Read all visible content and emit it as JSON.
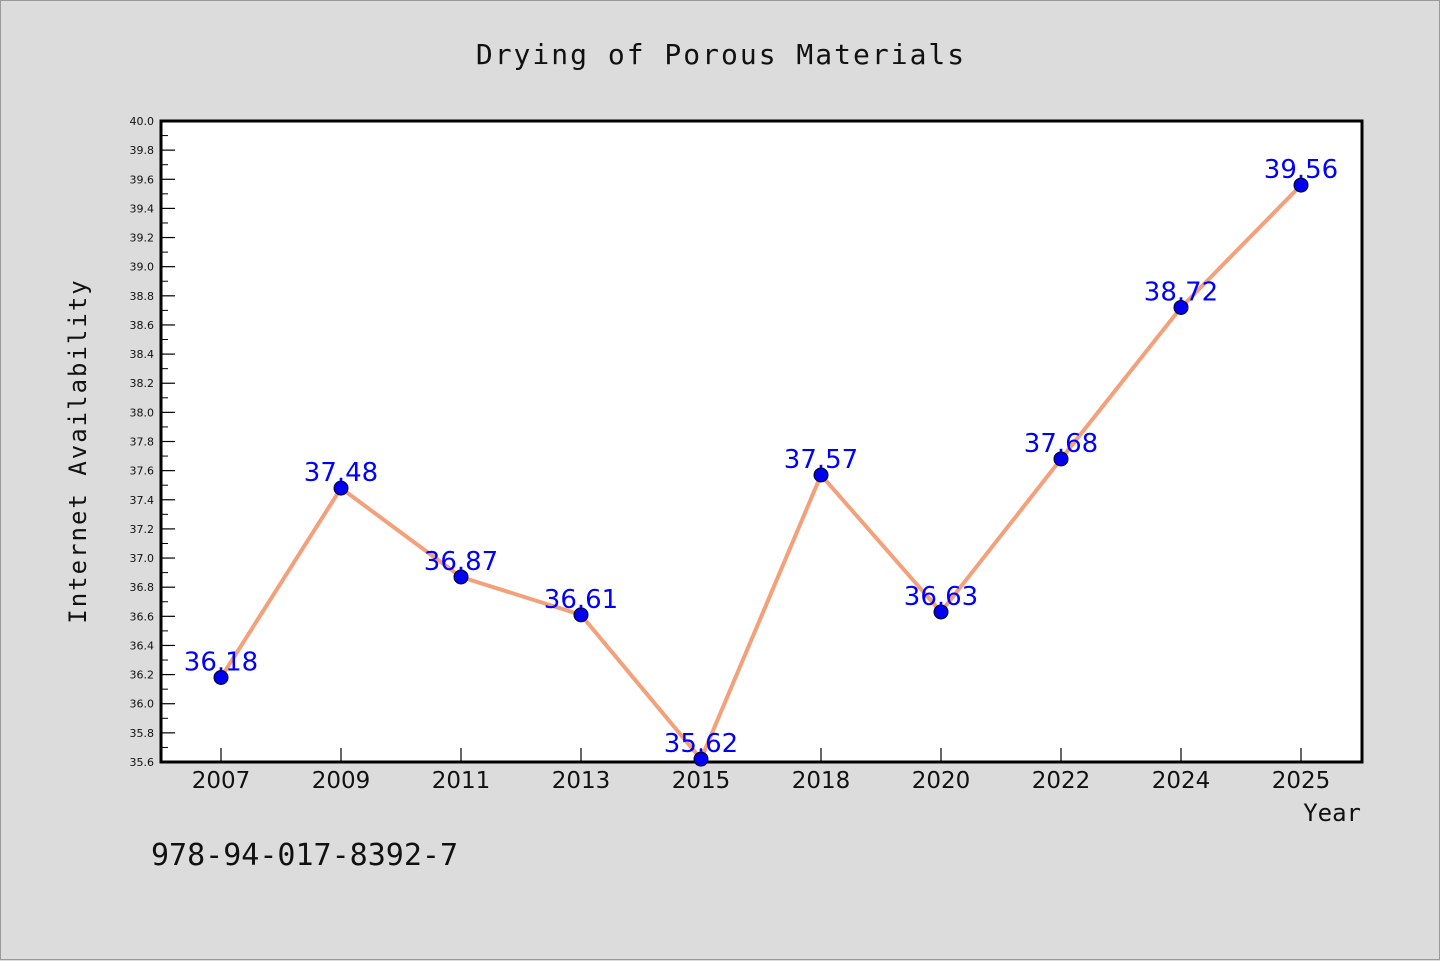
{
  "chart_data": {
    "type": "line",
    "title": "Drying of Porous Materials",
    "xlabel": "Year",
    "ylabel": "Internet Availability",
    "categories": [
      "2007",
      "2009",
      "2011",
      "2013",
      "2015",
      "2018",
      "2020",
      "2022",
      "2024",
      "2025"
    ],
    "series": [
      {
        "values": [
          36.18,
          37.48,
          36.87,
          36.61,
          35.62,
          37.57,
          36.63,
          37.68,
          38.72,
          39.56
        ],
        "labels": [
          "36.18",
          "37.48",
          "36.87",
          "36.61",
          "35.62",
          "37.57",
          "36.63",
          "37.68",
          "38.72",
          "39.56"
        ],
        "line_color": "#f4a07a",
        "marker_color": "#0000ee",
        "label_color": "#0000ff"
      }
    ],
    "ylim": [
      35.6,
      40.0
    ],
    "yticks": [
      "35.6",
      "35.8",
      "36.0",
      "36.2",
      "36.4",
      "36.6",
      "36.8",
      "37.0",
      "37.2",
      "37.4",
      "37.6",
      "37.8",
      "38.0",
      "38.2",
      "38.4",
      "38.6",
      "38.8",
      "39.0",
      "39.2",
      "39.4",
      "39.6",
      "39.8",
      "40.0"
    ],
    "grid": false,
    "annotation": "978-94-017-8392-7"
  }
}
